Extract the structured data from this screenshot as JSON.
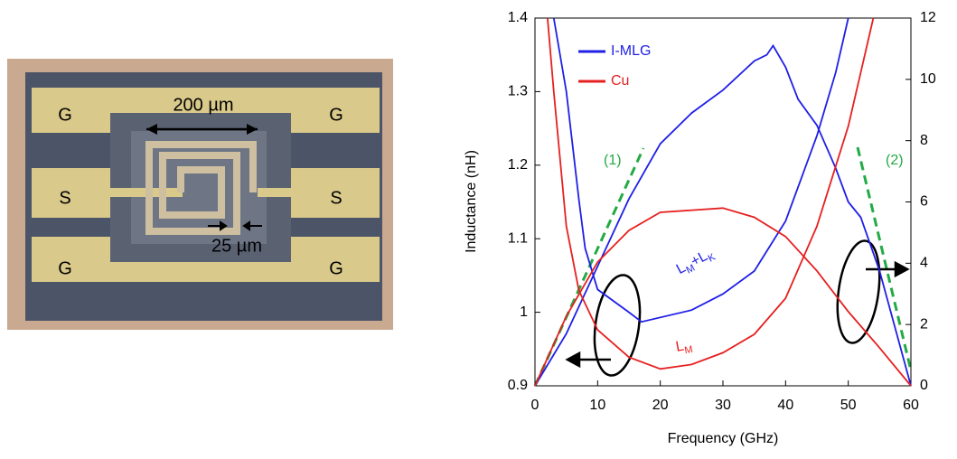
{
  "photo": {
    "pad_labels": [
      "G",
      "G",
      "S",
      "S",
      "G",
      "G"
    ],
    "scale_labels": [
      "200 µm",
      "25 µm"
    ]
  },
  "chart_data": {
    "type": "line",
    "xlabel": "Frequency (GHz)",
    "ylabel": "Inductance (nH)",
    "xlim": [
      0,
      60
    ],
    "xticks": [
      0,
      10,
      20,
      30,
      40,
      50,
      60
    ],
    "ylim": [
      0.9,
      1.4
    ],
    "yticks": [
      0.9,
      1,
      1.1,
      1.2,
      1.3,
      1.4
    ],
    "y2lim": [
      0,
      12
    ],
    "y2ticks": [
      0,
      2,
      4,
      6,
      8,
      10,
      12
    ],
    "legend": "upper left",
    "series": [
      {
        "name": "I-MLG",
        "color": "#1f1fe6",
        "axis": "y",
        "x": [
          3,
          5,
          7,
          8,
          10,
          15,
          17,
          25,
          30,
          35,
          40,
          45,
          48,
          50
        ],
        "values": [
          1.4,
          1.3,
          1.154,
          1.087,
          1.031,
          1.0,
          0.987,
          1.003,
          1.025,
          1.056,
          1.124,
          1.24,
          1.326,
          1.4
        ]
      },
      {
        "name": "I-MLG",
        "color": "#1f1fe6",
        "axis": "y2",
        "x": [
          0,
          5,
          10,
          15,
          20,
          25,
          30,
          35,
          37,
          38,
          40,
          42,
          45,
          48,
          50,
          52,
          55,
          60
        ],
        "values": [
          0,
          1.7,
          3.9,
          6.1,
          7.9,
          8.9,
          9.65,
          10.6,
          10.8,
          11.1,
          10.4,
          9.35,
          8.5,
          7.1,
          6.0,
          5.5,
          3.75,
          0
        ]
      },
      {
        "name": "Cu",
        "color": "#e62020",
        "axis": "y",
        "x": [
          2,
          3,
          5,
          7,
          10,
          15,
          20,
          25,
          30,
          35,
          40,
          45,
          50,
          52,
          54
        ],
        "values": [
          1.4,
          1.3,
          1.117,
          1.03,
          0.976,
          0.939,
          0.923,
          0.929,
          0.945,
          0.97,
          1.019,
          1.117,
          1.253,
          1.326,
          1.4
        ]
      },
      {
        "name": "Cu",
        "color": "#e62020",
        "axis": "y2",
        "x": [
          0,
          5,
          10,
          15,
          20,
          30,
          35,
          40,
          45,
          50,
          55,
          60
        ],
        "values": [
          0,
          2.27,
          4.04,
          5.07,
          5.66,
          5.8,
          5.5,
          4.87,
          3.75,
          2.42,
          1.24,
          0
        ]
      }
    ],
    "annotations": [
      {
        "runs": [
          "(1)"
        ],
        "color": "#22aa44"
      },
      {
        "runs": [
          "(2)"
        ],
        "color": "#22aa44"
      },
      {
        "runs": [
          "L",
          "M",
          "+L",
          "K"
        ],
        "color": "#1f1fe6"
      },
      {
        "runs": [
          "L",
          "M"
        ],
        "color": "#e62020"
      }
    ]
  }
}
